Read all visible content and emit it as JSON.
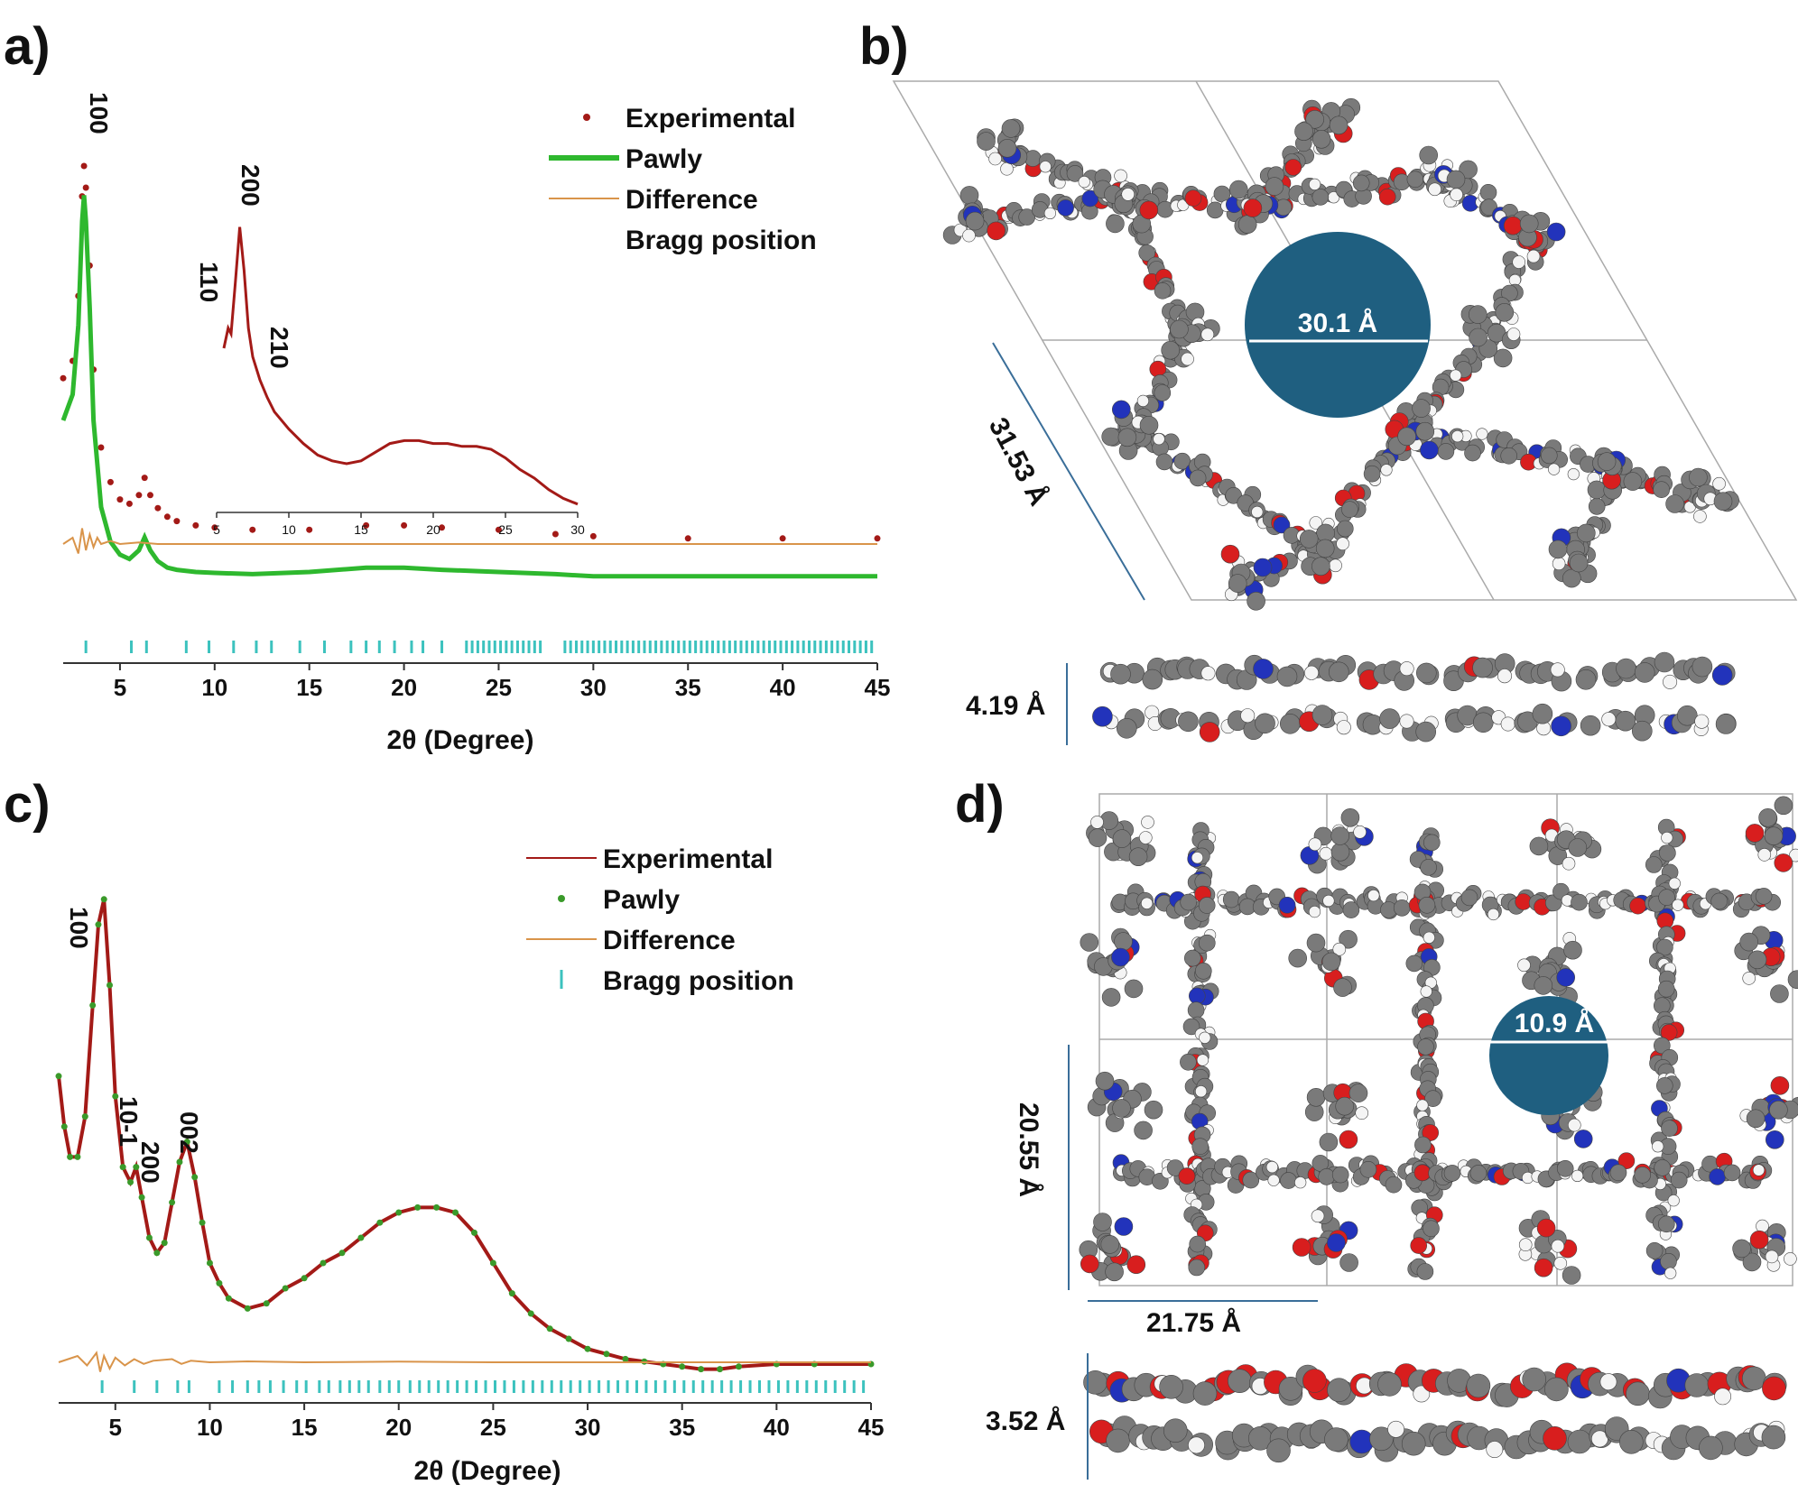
{
  "panel_labels": [
    "a)",
    "b)",
    "c)",
    "d)"
  ],
  "colors": {
    "experimental": "#a31a17",
    "pawly": "#2eb82e",
    "pawly_c": "#3a9a2a",
    "difference": "#d9944a",
    "bragg": "#3cc2be",
    "pore": "#1f5f80",
    "carbon": "#7a7a7a",
    "oxygen": "#d81e1e",
    "nitrogen": "#2233bb",
    "hydrogen": "#f4f4f4",
    "cell_line": "#aaaaaa",
    "dim_line": "#3a6e99"
  },
  "chart_data": [
    {
      "id": "a",
      "type": "line",
      "xlabel": "2θ (Degree)",
      "ylabel": "",
      "xlim": [
        2,
        45
      ],
      "xticks": [
        5,
        10,
        15,
        20,
        25,
        30,
        35,
        40,
        45
      ],
      "legend": {
        "position": "top-right",
        "entries": [
          "Experimental",
          "Pawly",
          "Difference",
          "Bragg position"
        ]
      },
      "series": [
        {
          "name": "Experimental",
          "style": "dots",
          "x": [
            2.0,
            2.5,
            2.8,
            3.0,
            3.1,
            3.2,
            3.4,
            3.6,
            4.0,
            4.5,
            5.0,
            5.5,
            6.0,
            6.3,
            6.6,
            7.0,
            7.5,
            8.0,
            9.0,
            10,
            12,
            15,
            18,
            20,
            22,
            25,
            28,
            30,
            35,
            40,
            45
          ],
          "y": [
            0.46,
            0.5,
            0.65,
            0.88,
            0.95,
            0.9,
            0.72,
            0.48,
            0.3,
            0.22,
            0.18,
            0.17,
            0.19,
            0.23,
            0.19,
            0.16,
            0.14,
            0.13,
            0.12,
            0.115,
            0.11,
            0.11,
            0.12,
            0.12,
            0.115,
            0.11,
            0.1,
            0.095,
            0.09,
            0.09,
            0.09
          ]
        },
        {
          "name": "Pawly",
          "style": "line",
          "x": [
            2.0,
            2.5,
            2.8,
            3.0,
            3.1,
            3.2,
            3.4,
            3.6,
            4.0,
            4.5,
            5.0,
            5.5,
            6.0,
            6.3,
            6.6,
            7.0,
            7.5,
            8.0,
            9.0,
            10,
            12,
            15,
            18,
            20,
            22,
            25,
            28,
            30,
            35,
            40,
            45
          ],
          "y": [
            0.4,
            0.46,
            0.62,
            0.86,
            0.92,
            0.86,
            0.66,
            0.4,
            0.2,
            0.12,
            0.09,
            0.08,
            0.1,
            0.13,
            0.1,
            0.075,
            0.06,
            0.055,
            0.05,
            0.048,
            0.045,
            0.05,
            0.06,
            0.06,
            0.055,
            0.05,
            0.045,
            0.04,
            0.04,
            0.04,
            0.04
          ]
        },
        {
          "name": "Difference",
          "style": "line",
          "x": [
            2.0,
            2.5,
            2.8,
            3.0,
            3.2,
            3.4,
            3.6,
            3.8,
            4.0,
            4.5,
            5.0,
            6.0,
            7.0,
            10,
            20,
            30,
            45
          ],
          "y": [
            0.0,
            0.02,
            -0.03,
            0.05,
            -0.02,
            0.03,
            -0.01,
            0.02,
            0.0,
            0.01,
            0.0,
            0.005,
            0.0,
            0.0,
            0.0,
            0.0,
            0.0
          ]
        }
      ],
      "bragg_positions": [
        3.2,
        5.6,
        6.4,
        8.5,
        9.7,
        11.0,
        12.2,
        13.0,
        14.5,
        15.8,
        17.2,
        18.0,
        18.7,
        19.5,
        20.4,
        21.0,
        22.0,
        23.3,
        23.6,
        23.9,
        24.2,
        24.5,
        24.8,
        25.1,
        25.4,
        25.7,
        26.0,
        26.3,
        26.6,
        26.9,
        27.2,
        28.5,
        28.8,
        29.1,
        29.4,
        29.7,
        30.0,
        30.3,
        30.6,
        30.9,
        31.2,
        31.5,
        31.8,
        32.1,
        32.4,
        32.7,
        33.0,
        33.3,
        33.6,
        33.9,
        34.2,
        34.5,
        34.8,
        35.1,
        35.4,
        35.7,
        36.0,
        36.3,
        36.6,
        36.9,
        37.2,
        37.5,
        37.8,
        38.1,
        38.4,
        38.7,
        39.0,
        39.3,
        39.6,
        39.9,
        40.2,
        40.5,
        40.8,
        41.1,
        41.4,
        41.7,
        42.0,
        42.3,
        42.6,
        42.9,
        43.2,
        43.5,
        43.8,
        44.1,
        44.4,
        44.7
      ],
      "peak_labels": [
        {
          "text": "100",
          "x": 3.2
        }
      ],
      "inset": {
        "xlim": [
          5,
          30
        ],
        "xticks": [
          5,
          10,
          15,
          20,
          25,
          30
        ],
        "peak_labels": [
          "110",
          "200",
          "210"
        ],
        "series": {
          "name": "Experimental",
          "x": [
            5.5,
            5.8,
            6.0,
            6.3,
            6.6,
            6.9,
            7.2,
            7.5,
            8.0,
            8.5,
            9.0,
            10,
            11,
            12,
            13,
            14,
            15,
            16,
            17,
            18,
            19,
            20,
            21,
            22,
            23,
            24,
            25,
            26,
            27,
            28,
            29,
            30
          ],
          "y": [
            0.55,
            0.62,
            0.6,
            0.78,
            0.97,
            0.82,
            0.62,
            0.52,
            0.44,
            0.38,
            0.33,
            0.27,
            0.22,
            0.18,
            0.16,
            0.15,
            0.16,
            0.19,
            0.22,
            0.23,
            0.23,
            0.22,
            0.22,
            0.21,
            0.21,
            0.2,
            0.17,
            0.13,
            0.1,
            0.06,
            0.03,
            0.01
          ]
        }
      }
    },
    {
      "id": "c",
      "type": "line",
      "xlabel": "2θ (Degree)",
      "ylabel": "",
      "xlim": [
        2,
        45
      ],
      "xticks": [
        5,
        10,
        15,
        20,
        25,
        30,
        35,
        40,
        45
      ],
      "legend": {
        "position": "top-right",
        "entries": [
          "Experimental",
          "Pawly",
          "Difference",
          "Bragg position"
        ]
      },
      "series": [
        {
          "name": "Experimental",
          "style": "line",
          "x": [
            2.0,
            2.3,
            2.6,
            3.0,
            3.4,
            3.8,
            4.1,
            4.4,
            4.7,
            5.0,
            5.4,
            5.8,
            6.1,
            6.4,
            6.8,
            7.2,
            7.6,
            8.0,
            8.4,
            8.8,
            9.2,
            9.6,
            10,
            10.5,
            11,
            12,
            13,
            14,
            15,
            16,
            17,
            18,
            19,
            20,
            21,
            22,
            23,
            24,
            25,
            26,
            27,
            28,
            29,
            30,
            31,
            32,
            33,
            34,
            35,
            36,
            37,
            38,
            40,
            42,
            45
          ],
          "y": [
            0.62,
            0.52,
            0.46,
            0.46,
            0.54,
            0.76,
            0.92,
            0.97,
            0.8,
            0.58,
            0.44,
            0.41,
            0.44,
            0.38,
            0.3,
            0.27,
            0.29,
            0.37,
            0.45,
            0.49,
            0.42,
            0.33,
            0.25,
            0.21,
            0.18,
            0.16,
            0.17,
            0.2,
            0.22,
            0.25,
            0.27,
            0.3,
            0.33,
            0.35,
            0.36,
            0.36,
            0.35,
            0.31,
            0.25,
            0.19,
            0.15,
            0.12,
            0.1,
            0.08,
            0.07,
            0.06,
            0.055,
            0.05,
            0.045,
            0.04,
            0.04,
            0.045,
            0.05,
            0.05,
            0.05
          ]
        },
        {
          "name": "Pawly",
          "style": "dots",
          "x": [
            2.0,
            2.3,
            2.6,
            3.0,
            3.4,
            3.8,
            4.1,
            4.4,
            4.7,
            5.0,
            5.4,
            5.8,
            6.1,
            6.4,
            6.8,
            7.2,
            7.6,
            8.0,
            8.4,
            8.8,
            9.2,
            9.6,
            10,
            10.5,
            11,
            12,
            13,
            14,
            15,
            16,
            17,
            18,
            19,
            20,
            21,
            22,
            23,
            24,
            25,
            26,
            27,
            28,
            29,
            30,
            31,
            32,
            33,
            34,
            35,
            36,
            37,
            38,
            40,
            42,
            45
          ],
          "y": [
            0.62,
            0.52,
            0.46,
            0.46,
            0.54,
            0.76,
            0.92,
            0.97,
            0.8,
            0.58,
            0.44,
            0.41,
            0.44,
            0.38,
            0.3,
            0.27,
            0.29,
            0.37,
            0.45,
            0.49,
            0.42,
            0.33,
            0.25,
            0.21,
            0.18,
            0.16,
            0.17,
            0.2,
            0.22,
            0.25,
            0.27,
            0.3,
            0.33,
            0.35,
            0.36,
            0.36,
            0.35,
            0.31,
            0.25,
            0.19,
            0.15,
            0.12,
            0.1,
            0.08,
            0.07,
            0.06,
            0.055,
            0.05,
            0.045,
            0.04,
            0.04,
            0.045,
            0.05,
            0.05,
            0.05
          ]
        },
        {
          "name": "Difference",
          "style": "line",
          "x": [
            2.0,
            2.5,
            3.0,
            3.5,
            4.0,
            4.2,
            4.4,
            4.7,
            5.0,
            5.5,
            6.0,
            6.5,
            7.0,
            8.0,
            8.5,
            9.0,
            10,
            12,
            15,
            20,
            25,
            30,
            35,
            40,
            45
          ],
          "y": [
            0.0,
            0.01,
            0.02,
            -0.01,
            0.03,
            -0.03,
            0.02,
            -0.02,
            0.015,
            -0.01,
            0.01,
            -0.005,
            0.005,
            0.01,
            -0.005,
            0.005,
            0.0,
            0.003,
            0.0,
            0.002,
            0.0,
            0.0,
            0.0,
            0.0,
            0.0
          ]
        }
      ],
      "bragg_positions": [
        4.3,
        6.0,
        7.2,
        8.3,
        8.9,
        10.5,
        11.2,
        12.0,
        12.6,
        13.2,
        13.9,
        14.6,
        15.1,
        15.8,
        16.3,
        16.9,
        17.4,
        17.9,
        18.4,
        19.0,
        19.5,
        20.0,
        20.6,
        21.1,
        21.6,
        22.1,
        22.6,
        23.1,
        23.6,
        24.1,
        24.6,
        25.1,
        25.6,
        26.1,
        26.6,
        27.1,
        27.6,
        28.1,
        28.6,
        29.1,
        29.6,
        30.1,
        30.6,
        31.1,
        31.6,
        32.1,
        32.6,
        33.1,
        33.6,
        34.1,
        34.6,
        35.1,
        35.6,
        36.1,
        36.6,
        37.1,
        37.6,
        38.1,
        38.6,
        39.1,
        39.6,
        40.1,
        40.6,
        41.1,
        41.6,
        42.1,
        42.6,
        43.1,
        43.6,
        44.1,
        44.6
      ],
      "peak_labels": [
        {
          "text": "100"
        },
        {
          "text": "10-1"
        },
        {
          "text": "200"
        },
        {
          "text": "002"
        }
      ]
    }
  ],
  "structures": {
    "b": {
      "pore_diameter": "30.1 Å",
      "cell_edge": "31.53 Å",
      "interlayer": "4.19 Å"
    },
    "d": {
      "pore_diameter": "10.9 Å",
      "cell_height": "20.55 Å",
      "cell_width": "21.75 Å",
      "interlayer": "3.52 Å"
    }
  }
}
